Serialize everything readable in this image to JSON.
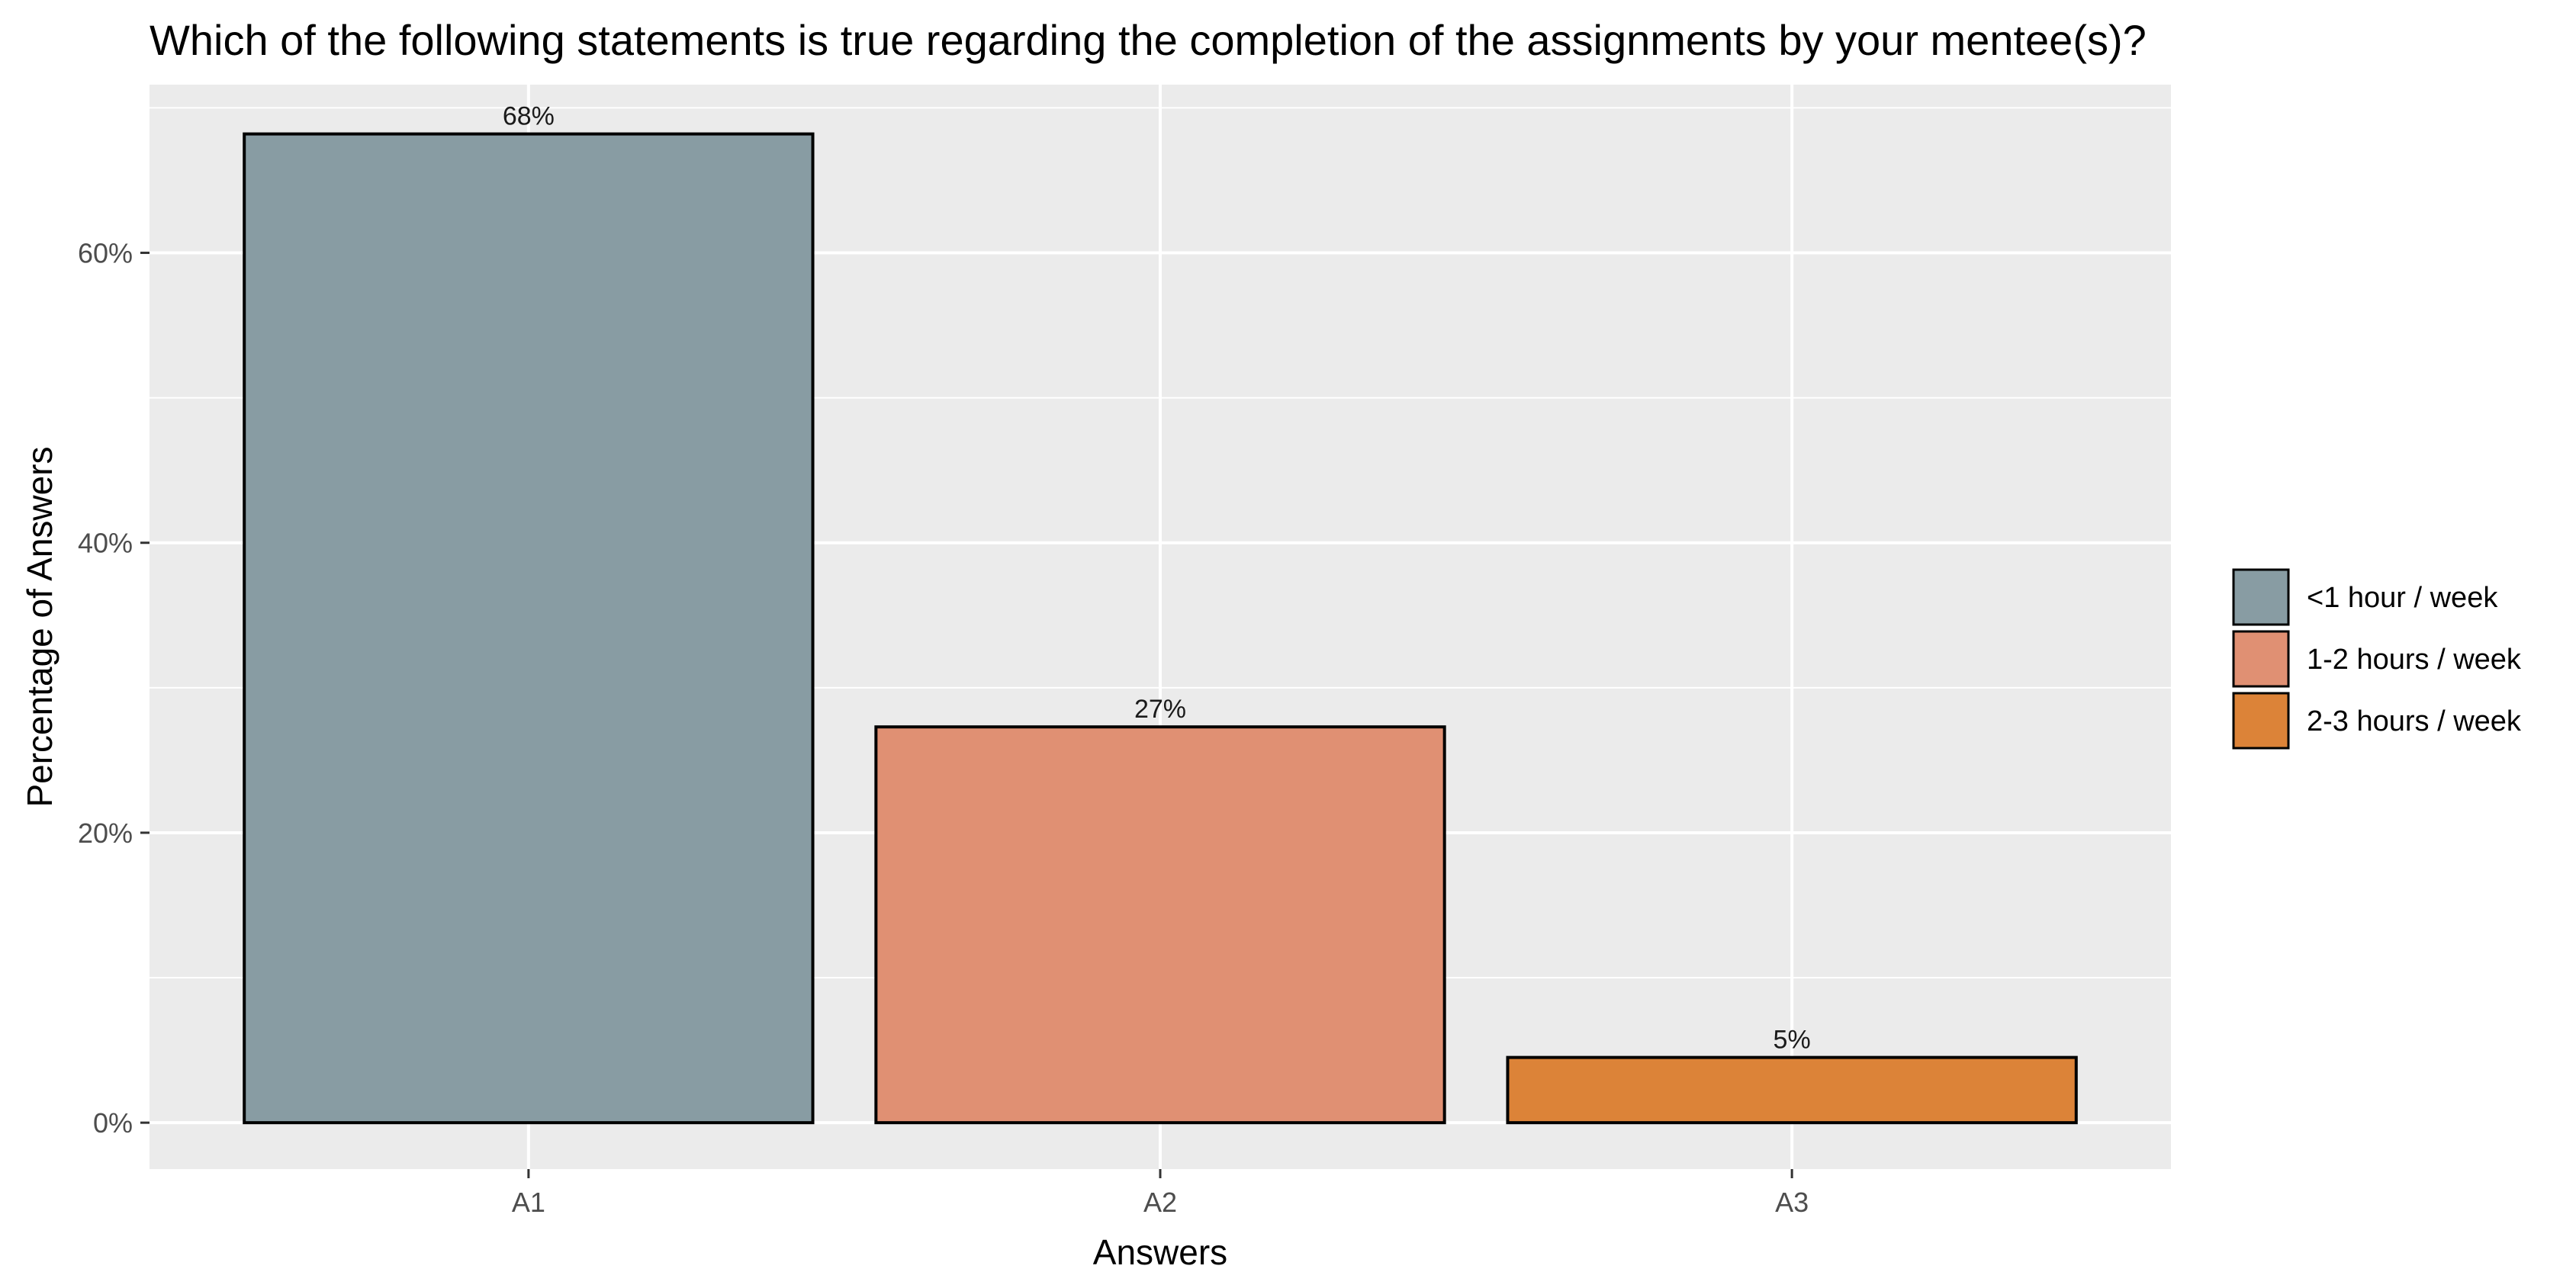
{
  "chart_data": {
    "type": "bar",
    "title": "Which of the following statements is true regarding the completion of the assignments by your mentee(s)?",
    "xlabel": "Answers",
    "ylabel": "Percentage of Answers",
    "categories": [
      "A1",
      "A2",
      "A3"
    ],
    "values": [
      68.2,
      27.3,
      4.5
    ],
    "data_labels": [
      "68%",
      "27%",
      "5%"
    ],
    "colors": [
      "#889ca3",
      "#e09073",
      "#dc8338"
    ],
    "legend": {
      "placement": "right",
      "entries": [
        "<1 hour / week",
        "1-2 hours / week",
        "2-3 hours / week"
      ]
    },
    "y_ticks": [
      0,
      20,
      40,
      60
    ],
    "y_tick_labels": [
      "0%",
      "20%",
      "40%",
      "60%"
    ],
    "ylim": [
      -3.2,
      71.6
    ],
    "grid": true,
    "panel_background": "#ebebeb",
    "grid_color": "#ffffff",
    "bar_outline": "#000000"
  }
}
